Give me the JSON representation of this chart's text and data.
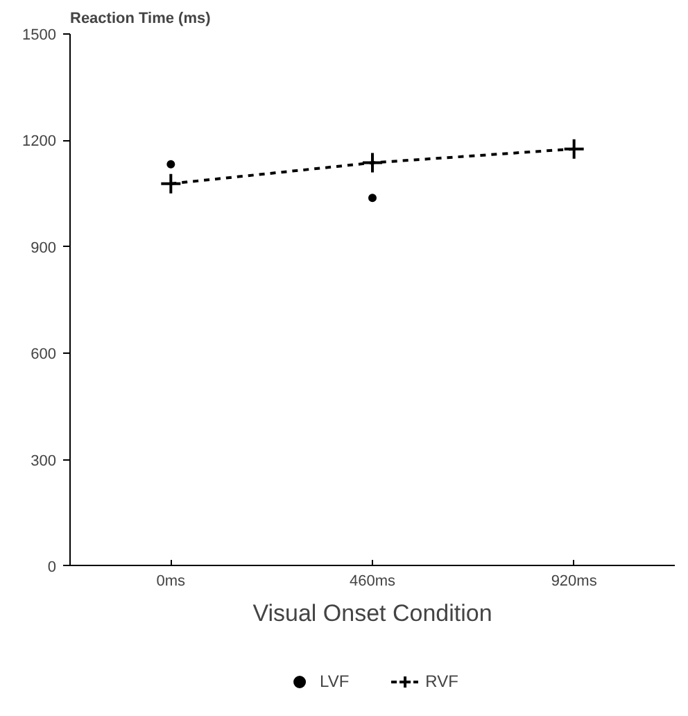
{
  "chart_data": {
    "type": "line",
    "ylabel": "Reaction Time (ms)",
    "xlabel": "Visual Onset Condition",
    "categories": [
      "0ms",
      "460ms",
      "920ms"
    ],
    "series": [
      {
        "name": "LVF",
        "color": "#000000",
        "values": [
          1133,
          1038,
          null
        ],
        "type": "scatter",
        "marker": "circle",
        "line_style": "none"
      },
      {
        "name": "RVF",
        "color": "#000000",
        "values": [
          1078,
          1137,
          1176
        ],
        "marker": "cross",
        "line_style": "dashed"
      }
    ],
    "ylim": [
      0,
      1500
    ],
    "yticks": [
      0,
      300,
      600,
      900,
      1200,
      1500
    ],
    "grid": false,
    "legend": "bottom"
  }
}
